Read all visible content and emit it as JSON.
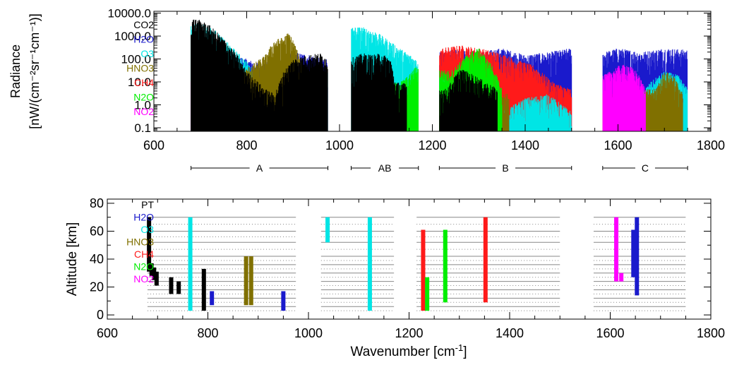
{
  "chart_data": [
    {
      "type": "line",
      "panel": "top",
      "ylabel_line1": "Radiance",
      "ylabel_line2": "[nW/(cm⁻²sr⁻¹cm⁻¹)]",
      "y_scale": "log",
      "ylim": [
        0.07,
        12000
      ],
      "xlim": [
        600,
        1800
      ],
      "x_ticks": [
        "600",
        "800",
        "1000",
        "1200",
        "1400",
        "1600",
        "1800"
      ],
      "y_ticks": [
        "10000.0",
        "1000.0",
        "100.0",
        "10.0",
        "1.0",
        "0.1"
      ],
      "y_tick_values": [
        10000,
        1000,
        100,
        10,
        1,
        0.1
      ],
      "legend": [
        {
          "name": "CO2",
          "color": "#000000"
        },
        {
          "name": "H2O",
          "color": "#1a1acc"
        },
        {
          "name": "O3",
          "color": "#00e5e5"
        },
        {
          "name": "HNO3",
          "color": "#807000"
        },
        {
          "name": "CH4",
          "color": "#ff1a1a"
        },
        {
          "name": "N2O",
          "color": "#00ee00"
        },
        {
          "name": "NO2",
          "color": "#ff00ff"
        }
      ],
      "bands": [
        {
          "label": "A",
          "x": [
            680,
            975
          ]
        },
        {
          "label": "AB",
          "x": [
            1025,
            1170
          ]
        },
        {
          "label": "B",
          "x": [
            1215,
            1500
          ]
        },
        {
          "label": "C",
          "x": [
            1567,
            1750
          ]
        }
      ],
      "series": [
        {
          "name": "CO2",
          "color": "#000000",
          "envelope": [
            [
              680,
              6000
            ],
            [
              700,
              5000
            ],
            [
              720,
              3000
            ],
            [
              750,
              800
            ],
            [
              780,
              150
            ],
            [
              800,
              30
            ],
            [
              840,
              5
            ],
            [
              860,
              3
            ],
            [
              880,
              30
            ],
            [
              900,
              100
            ],
            [
              930,
              150
            ],
            [
              960,
              180
            ],
            [
              975,
              100
            ],
            [
              1030,
              120
            ],
            [
              1050,
              180
            ],
            [
              1070,
              150
            ],
            [
              1090,
              180
            ],
            [
              1110,
              100
            ],
            [
              1120,
              10
            ],
            [
              1230,
              5
            ],
            [
              1260,
              40
            ],
            [
              1290,
              20
            ],
            [
              1340,
              5
            ]
          ]
        },
        {
          "name": "H2O",
          "color": "#1a1acc",
          "envelope": [
            [
              690,
              200
            ],
            [
              720,
              150
            ],
            [
              760,
              200
            ],
            [
              800,
              100
            ],
            [
              830,
              60
            ],
            [
              860,
              100
            ],
            [
              900,
              200
            ],
            [
              940,
              150
            ],
            [
              975,
              100
            ],
            [
              1220,
              200
            ],
            [
              1260,
              300
            ],
            [
              1300,
              200
            ],
            [
              1350,
              300
            ],
            [
              1400,
              150
            ],
            [
              1450,
              200
            ],
            [
              1500,
              300
            ],
            [
              1570,
              200
            ],
            [
              1600,
              300
            ],
            [
              1650,
              200
            ],
            [
              1700,
              300
            ],
            [
              1750,
              250
            ]
          ]
        },
        {
          "name": "O3",
          "color": "#00e5e5",
          "envelope": [
            [
              680,
              3000
            ],
            [
              700,
              4000
            ],
            [
              730,
              2000
            ],
            [
              760,
              500
            ],
            [
              800,
              80
            ],
            [
              840,
              8
            ],
            [
              880,
              1
            ],
            [
              920,
              0.3
            ],
            [
              950,
              3
            ],
            [
              975,
              30
            ],
            [
              1020,
              2500
            ],
            [
              1050,
              2500
            ],
            [
              1080,
              1500
            ],
            [
              1100,
              800
            ],
            [
              1130,
              300
            ],
            [
              1160,
              120
            ],
            [
              1170,
              80
            ],
            [
              1220,
              20
            ],
            [
              1260,
              3
            ],
            [
              1300,
              1
            ],
            [
              1350,
              0.5
            ],
            [
              1400,
              2
            ],
            [
              1450,
              3
            ],
            [
              1500,
              0.5
            ],
            [
              1640,
              2
            ],
            [
              1670,
              10
            ],
            [
              1700,
              30
            ],
            [
              1730,
              20
            ],
            [
              1750,
              5
            ]
          ]
        },
        {
          "name": "HNO3",
          "color": "#807000",
          "envelope": [
            [
              740,
              10
            ],
            [
              760,
              30
            ],
            [
              780,
              20
            ],
            [
              840,
              150
            ],
            [
              860,
              700
            ],
            [
              880,
              900
            ],
            [
              890,
              1500
            ],
            [
              900,
              700
            ],
            [
              920,
              60
            ],
            [
              940,
              3
            ],
            [
              1240,
              5
            ],
            [
              1260,
              30
            ],
            [
              1300,
              10
            ],
            [
              1340,
              3
            ],
            [
              1680,
              5
            ],
            [
              1700,
              30
            ],
            [
              1720,
              20
            ],
            [
              1740,
              3
            ]
          ]
        },
        {
          "name": "CH4",
          "color": "#ff1a1a",
          "envelope": [
            [
              690,
              10
            ],
            [
              720,
              20
            ],
            [
              760,
              5
            ],
            [
              1060,
              1
            ],
            [
              1100,
              0.5
            ],
            [
              1160,
              0.2
            ],
            [
              1220,
              300
            ],
            [
              1260,
              400
            ],
            [
              1300,
              300
            ],
            [
              1340,
              200
            ],
            [
              1380,
              100
            ],
            [
              1420,
              50
            ],
            [
              1460,
              10
            ],
            [
              1500,
              5
            ],
            [
              1570,
              3
            ],
            [
              1620,
              5
            ],
            [
              1660,
              1
            ]
          ]
        },
        {
          "name": "N2O",
          "color": "#00ee00",
          "envelope": [
            [
              690,
              5
            ],
            [
              720,
              2
            ],
            [
              760,
              1
            ],
            [
              1130,
              10
            ],
            [
              1150,
              20
            ],
            [
              1165,
              50
            ],
            [
              1240,
              30
            ],
            [
              1280,
              200
            ],
            [
              1300,
              300
            ],
            [
              1330,
              50
            ],
            [
              1350,
              5
            ]
          ]
        },
        {
          "name": "NO2",
          "color": "#ff00ff",
          "envelope": [
            [
              680,
              20
            ],
            [
              700,
              10
            ],
            [
              720,
              5
            ],
            [
              750,
              3
            ],
            [
              780,
              2
            ],
            [
              1570,
              20
            ],
            [
              1600,
              50
            ],
            [
              1620,
              60
            ],
            [
              1640,
              30
            ],
            [
              1660,
              5
            ]
          ]
        }
      ]
    },
    {
      "type": "bar",
      "panel": "bottom",
      "xlabel_text": "Wavenumber [cm",
      "xlabel_sup": "-1",
      "xlabel_end": "]",
      "ylabel": "Altitude [km]",
      "xlim": [
        600,
        1800
      ],
      "ylim": [
        -3,
        83
      ],
      "x_ticks": [
        "600",
        "800",
        "1000",
        "1200",
        "1400",
        "1600",
        "1800"
      ],
      "y_ticks": [
        "0",
        "20",
        "40",
        "60",
        "80"
      ],
      "y_tick_values": [
        0,
        20,
        40,
        60,
        80
      ],
      "legend": [
        {
          "name": "PT",
          "color": "#000000"
        },
        {
          "name": "H2O",
          "color": "#1a1acc"
        },
        {
          "name": "O3",
          "color": "#00e5e5"
        },
        {
          "name": "HNO3",
          "color": "#807000"
        },
        {
          "name": "CH4",
          "color": "#ff1a1a"
        },
        {
          "name": "N2O",
          "color": "#00ee00"
        },
        {
          "name": "NO2",
          "color": "#ff00ff"
        }
      ],
      "solid_altitudes": [
        6,
        12,
        18,
        24,
        30,
        36,
        42,
        52,
        60,
        70
      ],
      "dotted_altitudes": [
        3,
        9,
        15,
        21,
        27,
        33,
        39,
        47,
        56,
        65
      ],
      "segments": [
        {
          "species": "PT",
          "color": "#000000",
          "x": 683,
          "bottom": 31,
          "top": 70
        },
        {
          "species": "PT",
          "color": "#000000",
          "x": 688,
          "bottom": 28,
          "top": 37
        },
        {
          "species": "PT",
          "color": "#000000",
          "x": 693,
          "bottom": 25,
          "top": 34
        },
        {
          "species": "PT",
          "color": "#000000",
          "x": 698,
          "bottom": 21,
          "top": 31
        },
        {
          "species": "PT",
          "color": "#000000",
          "x": 727,
          "bottom": 15,
          "top": 27
        },
        {
          "species": "PT",
          "color": "#000000",
          "x": 742,
          "bottom": 15,
          "top": 24
        },
        {
          "species": "PT",
          "color": "#000000",
          "x": 792,
          "bottom": 3,
          "top": 33
        },
        {
          "species": "O3",
          "color": "#00e5e5",
          "x": 765,
          "bottom": 3,
          "top": 70
        },
        {
          "species": "H2O",
          "color": "#1a1acc",
          "x": 808,
          "bottom": 7,
          "top": 17
        },
        {
          "species": "HNO3",
          "color": "#807000",
          "x": 876,
          "bottom": 7,
          "top": 42
        },
        {
          "species": "HNO3",
          "color": "#807000",
          "x": 886,
          "bottom": 7,
          "top": 42
        },
        {
          "species": "H2O",
          "color": "#1a1acc",
          "x": 950,
          "bottom": 3,
          "top": 17
        },
        {
          "species": "O3",
          "color": "#00e5e5",
          "x": 1038,
          "bottom": 52,
          "top": 70
        },
        {
          "species": "O3",
          "color": "#00e5e5",
          "x": 1122,
          "bottom": 3,
          "top": 70
        },
        {
          "species": "CH4",
          "color": "#ff1a1a",
          "x": 1228,
          "bottom": 3,
          "top": 61
        },
        {
          "species": "N2O",
          "color": "#00ee00",
          "x": 1236,
          "bottom": 3,
          "top": 27
        },
        {
          "species": "N2O",
          "color": "#00ee00",
          "x": 1272,
          "bottom": 9,
          "top": 61
        },
        {
          "species": "CH4",
          "color": "#ff1a1a",
          "x": 1352,
          "bottom": 9,
          "top": 70
        },
        {
          "species": "NO2",
          "color": "#ff00ff",
          "x": 1612,
          "bottom": 24,
          "top": 70
        },
        {
          "species": "NO2",
          "color": "#ff00ff",
          "x": 1622,
          "bottom": 24,
          "top": 30
        },
        {
          "species": "H2O",
          "color": "#1a1acc",
          "x": 1646,
          "bottom": 27,
          "top": 61
        },
        {
          "species": "H2O",
          "color": "#1a1acc",
          "x": 1653,
          "bottom": 14,
          "top": 70
        }
      ]
    }
  ]
}
